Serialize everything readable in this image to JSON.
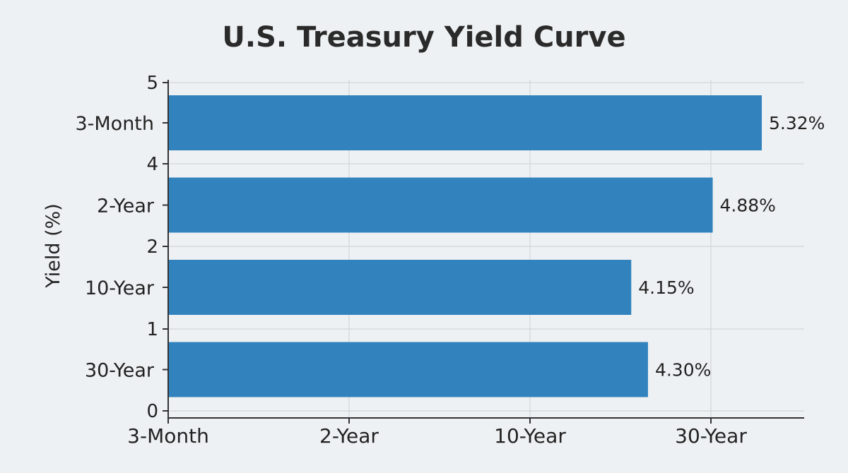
{
  "chart_data": {
    "type": "bar",
    "orientation": "horizontal",
    "title": "U.S. Treasury Yield Curve",
    "ylabel": "Yield (%)",
    "xlabel": "",
    "categories": [
      "3-Month",
      "2-Year",
      "10-Year",
      "30-Year"
    ],
    "values": [
      5.32,
      4.88,
      4.15,
      4.3
    ],
    "value_labels": [
      "5.32%",
      "4.88%",
      "4.15%",
      "4.30%"
    ],
    "x_tick_labels": [
      "3-Month",
      "2-Year",
      "10-Year",
      "30-Year"
    ],
    "left_tick_labels": [
      "5",
      "4",
      "2",
      "1",
      "0"
    ],
    "xlim": [
      0,
      5.7
    ],
    "grid": true,
    "legend": "none",
    "bar_color": "#3182bd"
  }
}
